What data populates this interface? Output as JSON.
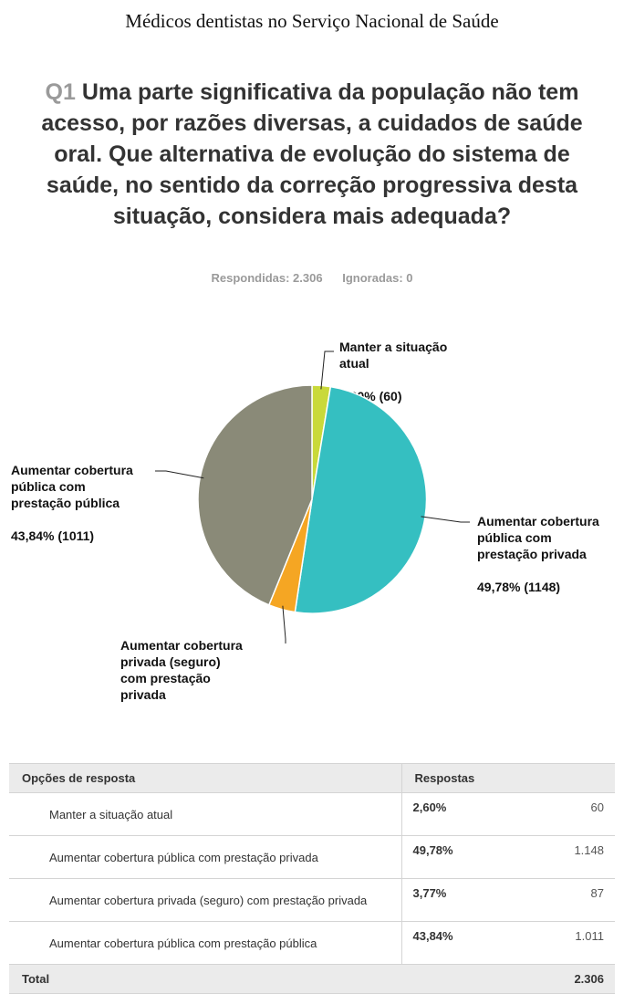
{
  "document": {
    "title": "Médicos dentistas no Serviço Nacional de Saúde"
  },
  "question": {
    "number": "Q1",
    "text": "Uma parte significativa da população não tem acesso, por razões diversas, a cuidados de saúde oral. Que alternativa de evolução do sistema de saúde, no sentido da correção progressiva desta situação, considera mais adequada?"
  },
  "stats": {
    "answered": "Respondidas: 2.306",
    "skipped": "Ignoradas: 0"
  },
  "chart_data": {
    "type": "pie",
    "title": "",
    "slices": [
      {
        "label_lines": [
          "Manter a situação",
          "atual"
        ],
        "value_label": "2,60% (60)",
        "percent": 2.6,
        "count": 60,
        "color": "#c9d93a"
      },
      {
        "label_lines": [
          "Aumentar cobertura",
          "pública com",
          "prestação privada"
        ],
        "value_label": "49,78% (1148)",
        "percent": 49.78,
        "count": 1148,
        "color": "#35bfc1"
      },
      {
        "label_lines": [
          "Aumentar cobertura",
          "privada (seguro)",
          "com prestação",
          "privada"
        ],
        "value_label": "",
        "percent": 3.77,
        "count": 87,
        "color": "#f5a623"
      },
      {
        "label_lines": [
          "Aumentar cobertura",
          "pública com",
          "prestação pública"
        ],
        "value_label": "43,84% (1011)",
        "percent": 43.84,
        "count": 1011,
        "color": "#8a8a78"
      }
    ],
    "legend": "none",
    "slice_border_color": "#ffffff"
  },
  "table": {
    "headers": {
      "options": "Opções de resposta",
      "responses": "Respostas"
    },
    "rows": [
      {
        "option": "Manter a situação atual",
        "percent": "2,60%",
        "count": "60"
      },
      {
        "option": "Aumentar cobertura pública com prestação privada",
        "percent": "49,78%",
        "count": "1.148"
      },
      {
        "option": "Aumentar cobertura privada (seguro) com prestação privada",
        "percent": "3,77%",
        "count": "87"
      },
      {
        "option": "Aumentar cobertura pública com prestação pública",
        "percent": "43,84%",
        "count": "1.011"
      }
    ],
    "total": {
      "label": "Total",
      "count": "2.306"
    }
  }
}
